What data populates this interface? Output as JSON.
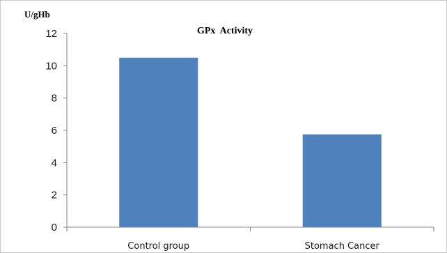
{
  "chart_data": {
    "type": "bar",
    "title": "GPx  Activity",
    "ylabel": "U/gHb",
    "xlabel": "",
    "categories": [
      "Control group",
      "Stomach Cancer"
    ],
    "values": [
      10.5,
      5.75
    ],
    "ylim": [
      0,
      12
    ],
    "yticks": [
      "0",
      "2",
      "4",
      "6",
      "8",
      "10",
      "12"
    ],
    "grid": false,
    "legend": "none",
    "bar_color": "#4f81bd",
    "axis_color": "#868686"
  }
}
